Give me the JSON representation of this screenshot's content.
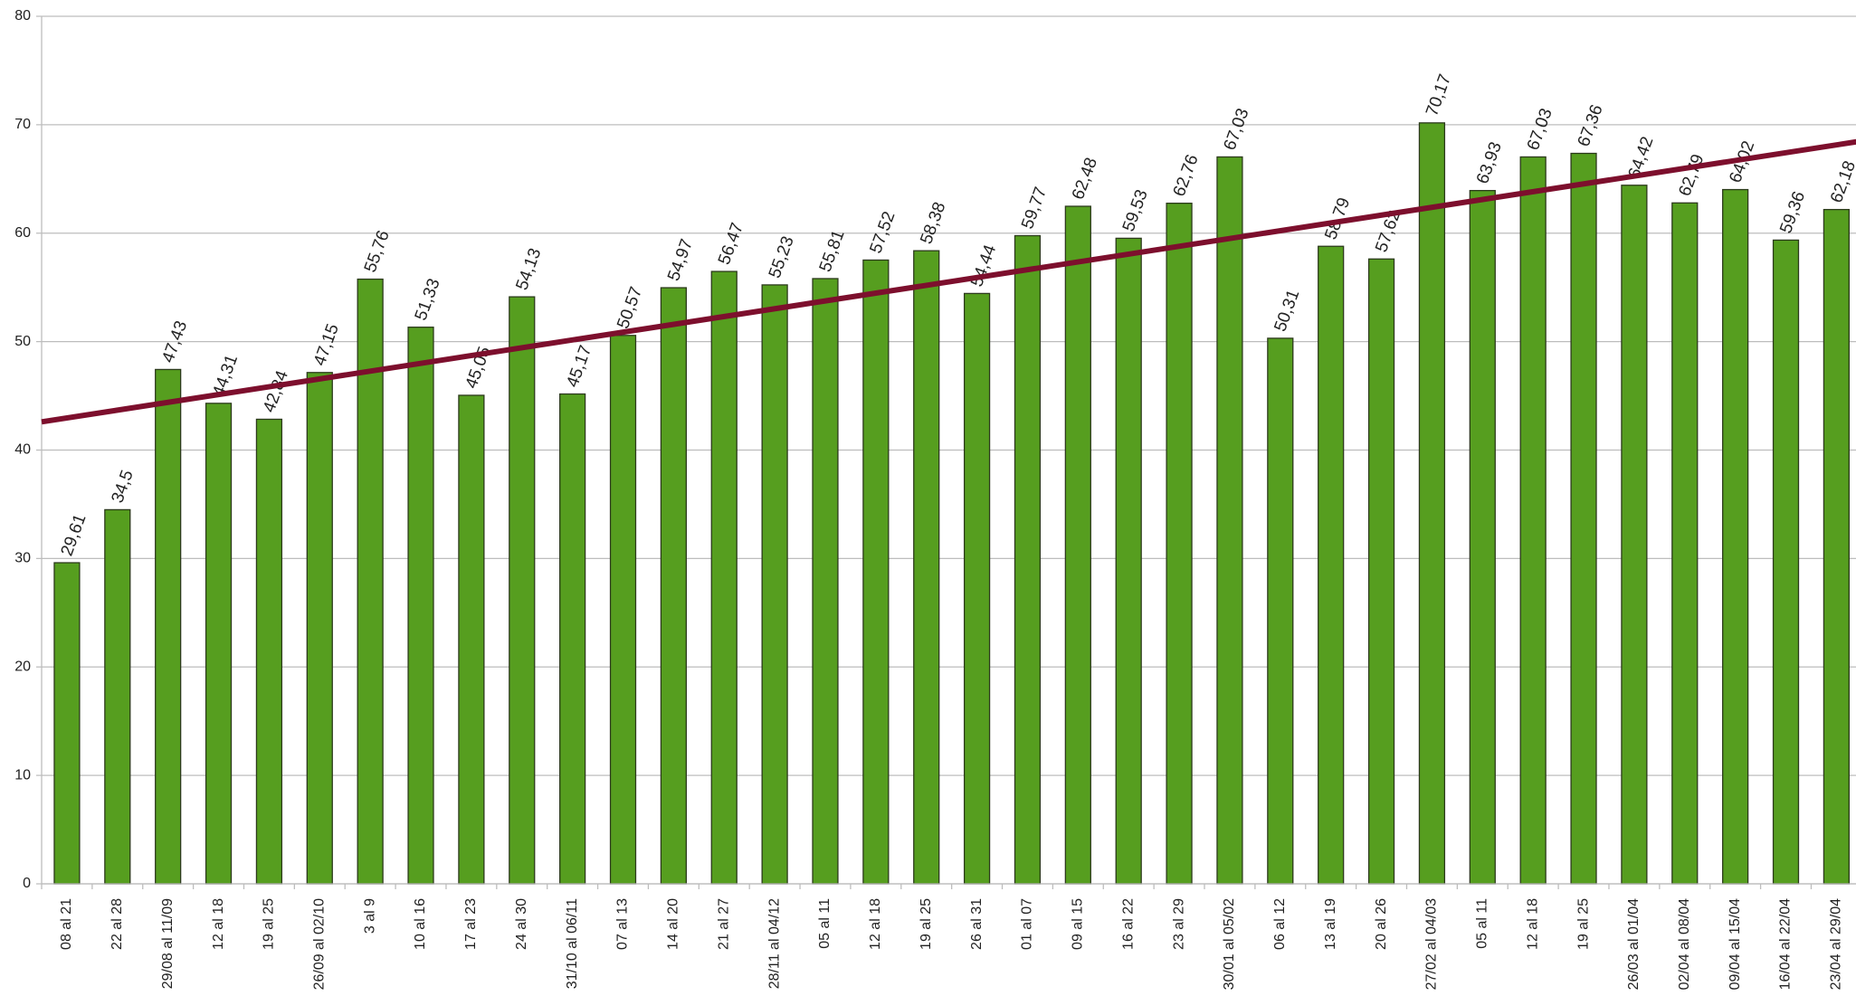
{
  "chart_data": {
    "type": "bar",
    "categories": [
      "08 al 21",
      "22 al 28",
      "29/08 al 11/09",
      "12 al 18",
      "19 al 25",
      "26/09 al 02/10",
      "3 al 9",
      "10 al 16",
      "17 al 23",
      "24 al 30",
      "31/10 al 06/11",
      "07 al 13",
      "14 al 20",
      "21 al 27",
      "28/11 al 04/12",
      "05 al 11",
      "12 al 18",
      "19 al 25",
      "26 al 31",
      "01 al 07",
      "09 al 15",
      "16 al 22",
      "23 al 29",
      "30/01 al 05/02",
      "06 al 12",
      "13 al 19",
      "20 al 26",
      "27/02 al 04/03",
      "05 al 11",
      "12 al 18",
      "19 al 25",
      "26/03 al 01/04",
      "02/04 al 08/04",
      "09/04 al 15/04",
      "16/04 al 22/04",
      "23/04 al 29/04"
    ],
    "values": [
      29.61,
      34.5,
      47.43,
      44.31,
      42.84,
      47.15,
      55.76,
      51.33,
      45.05,
      54.13,
      45.17,
      50.57,
      54.97,
      56.47,
      55.23,
      55.81,
      57.52,
      58.38,
      54.44,
      59.77,
      62.48,
      59.53,
      62.76,
      67.03,
      50.31,
      58.79,
      57.62,
      70.17,
      63.93,
      67.03,
      67.36,
      64.42,
      62.79,
      64.02,
      59.36,
      62.18
    ],
    "value_labels": [
      "29,61",
      "34,5",
      "47,43",
      "44,31",
      "42,84",
      "47,15",
      "55,76",
      "51,33",
      "45,05",
      "54,13",
      "45,17",
      "50,57",
      "54,97",
      "56,47",
      "55,23",
      "55,81",
      "57,52",
      "58,38",
      "54,44",
      "59,77",
      "62,48",
      "59,53",
      "62,76",
      "67,03",
      "50,31",
      "58,79",
      "57,62",
      "70,17",
      "63,93",
      "67,03",
      "67,36",
      "64,42",
      "62,79",
      "64,02",
      "59,36",
      "62,18"
    ],
    "color": "#569e1f",
    "trend": {
      "values": [
        42.6,
        68.5
      ],
      "color": "#7d0f2d"
    },
    "ylim": [
      0,
      80
    ],
    "yticks": [
      0,
      10,
      20,
      30,
      40,
      50,
      60,
      70,
      80
    ],
    "grid": true
  }
}
